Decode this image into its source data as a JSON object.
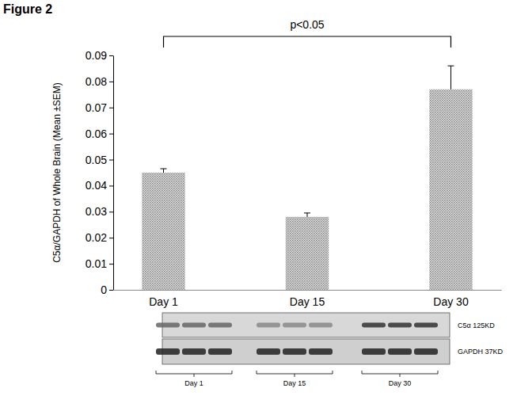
{
  "figure_label": "Figure 2",
  "chart_data": {
    "type": "bar",
    "y_label": "C5α/GAPDH of Whole Brain (Mean ±SEM)",
    "categories": [
      "Day 1",
      "Day 15",
      "Day 30"
    ],
    "values": [
      0.045,
      0.028,
      0.077
    ],
    "errors": [
      0.0015,
      0.0015,
      0.009
    ],
    "color": "#8c8c8c",
    "ylim": [
      0,
      0.09
    ],
    "yticks": [
      0,
      0.01,
      0.02,
      0.03,
      0.04,
      0.05,
      0.06,
      0.07,
      0.08,
      0.09
    ],
    "grid": false,
    "annotations": [
      {
        "text": "p<0.05",
        "from": "Day 1",
        "to": "Day 30"
      }
    ]
  },
  "blot": {
    "rows": [
      "C5α 125KD",
      "GAPDH 37KD"
    ],
    "groups": [
      "Day 1",
      "Day 15",
      "Day 30"
    ]
  }
}
